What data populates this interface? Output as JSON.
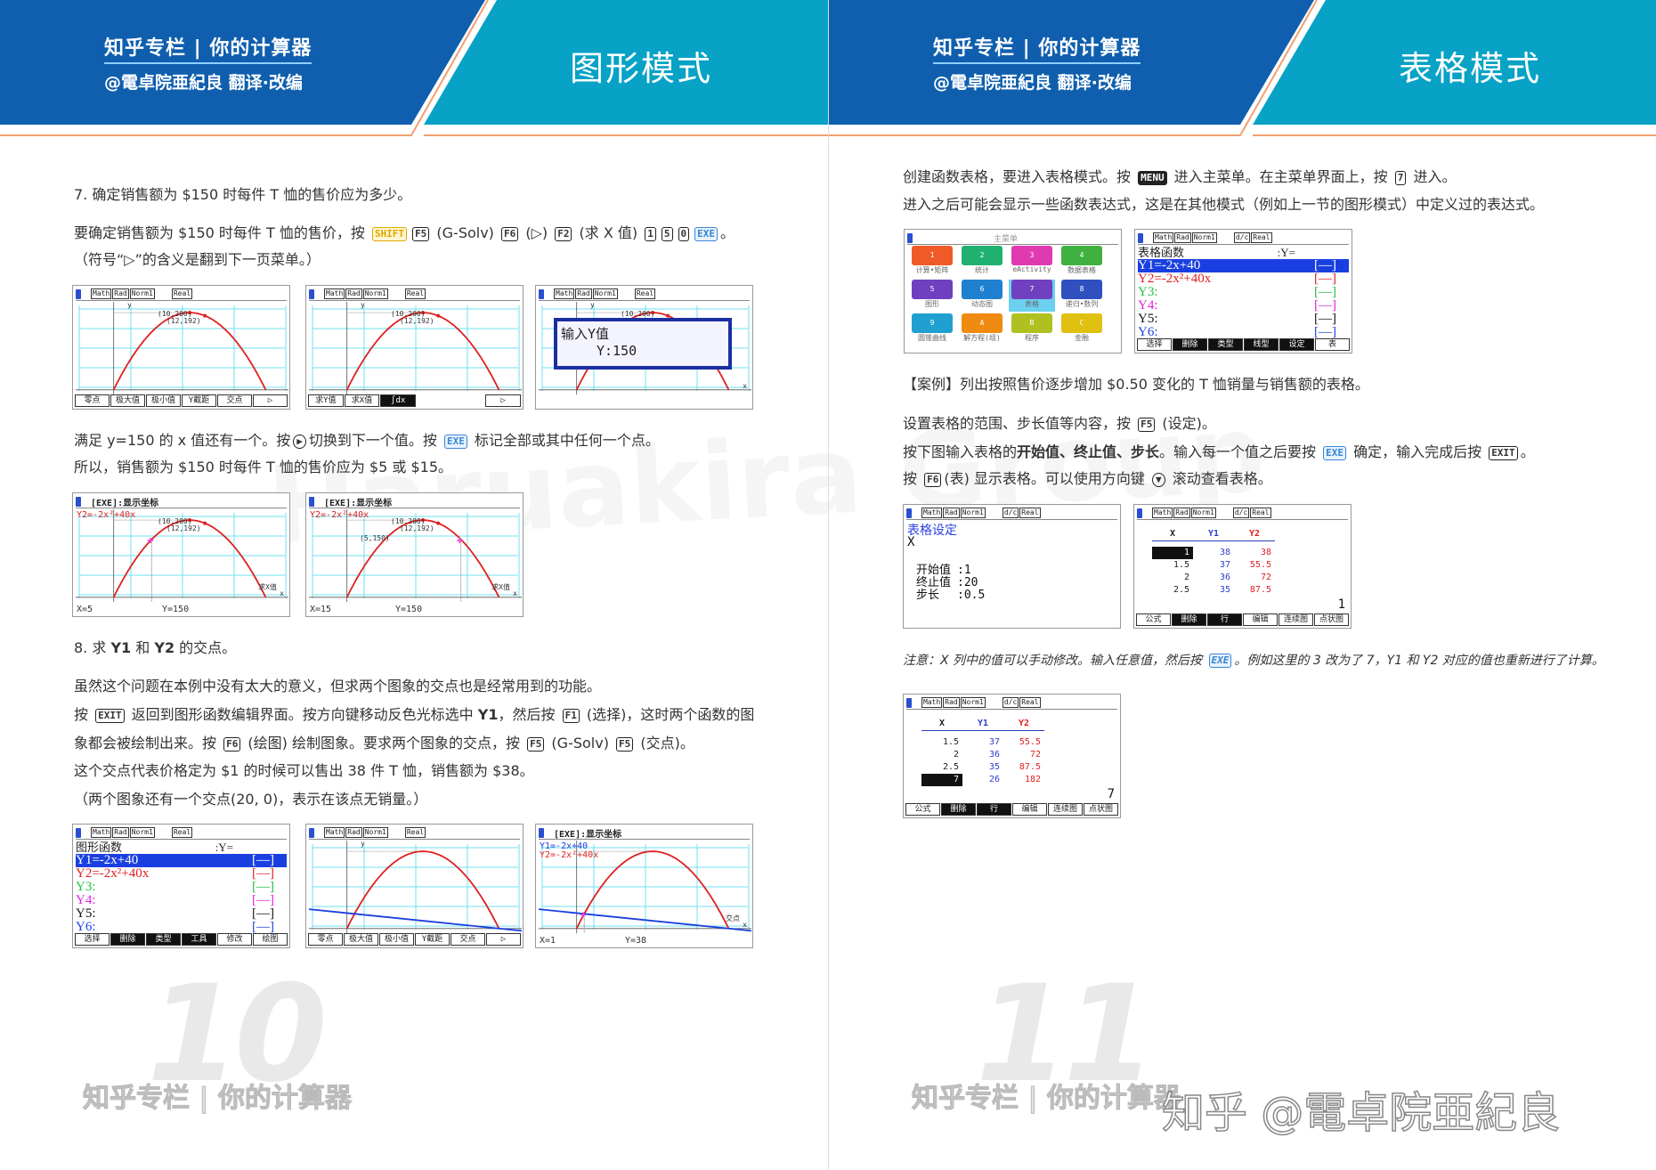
{
  "watermark_bg": "Haruakira Group",
  "site_watermark": "知乎 @電卓院亜紀良",
  "left": {
    "brand": "知乎专栏 | 你的计算器",
    "byline": "@電卓院亜紀良 翻译·改编",
    "mode_title": "图形模式",
    "page_number": "10",
    "footer": "知乎专栏 | 你的计算器",
    "paras": {
      "p1": [
        {
          "t": "7. 确定销售额为 $150 时每件 T 恤的售价应为多少。"
        }
      ],
      "p2": [
        {
          "t": "要确定销售额为 $150 时每件 T 恤的售价，按 "
        },
        {
          "k": "SHIFT",
          "s": "shift"
        },
        {
          "k": "F5"
        },
        {
          "t": " (G-Solv) "
        },
        {
          "k": "F6"
        },
        {
          "t": " (▷) "
        },
        {
          "k": "F2"
        },
        {
          "t": " (求 X 值) "
        },
        {
          "k": "1"
        },
        {
          "k": "5"
        },
        {
          "k": "0"
        },
        {
          "k": "EXE",
          "s": "exe"
        },
        {
          "t": "。"
        }
      ],
      "p3": [
        {
          "t": "（符号“▷”的含义是翻到下一页菜单。）"
        }
      ],
      "p4": [
        {
          "t": "满足 y=150 的 x 值还有一个。按"
        },
        {
          "k": "▶",
          "s": "circ"
        },
        {
          "t": "切换到下一个值。按 "
        },
        {
          "k": "EXE",
          "s": "exe"
        },
        {
          "t": " 标记全部或其中任何一个点。"
        }
      ],
      "p5": [
        {
          "t": "所以，销售额为 $150 时每件 T 恤的售价应为 $5 或 $15。"
        }
      ],
      "p6": [
        {
          "t": "8. 求 "
        },
        {
          "b": "Y1"
        },
        {
          "t": " 和 "
        },
        {
          "b": "Y2"
        },
        {
          "t": " 的交点。"
        }
      ],
      "p7": [
        {
          "t": "虽然这个问题在本例中没有太大的意义，但求两个图象的交点也是经常用到的功能。"
        }
      ],
      "p8": [
        {
          "t": "按 "
        },
        {
          "k": "EXIT"
        },
        {
          "t": " 返回到图形函数编辑界面。按方向键移动反色光标选中 "
        },
        {
          "b": "Y1"
        },
        {
          "t": "，然后按 "
        },
        {
          "k": "F1"
        },
        {
          "t": " (选择)，这时两个函数的图"
        }
      ],
      "p9": [
        {
          "t": "象都会被绘制出来。按 "
        },
        {
          "k": "F6"
        },
        {
          "t": " (绘图) 绘制图象。要求两个图象的交点，按 "
        },
        {
          "k": "F5"
        },
        {
          "t": " (G-Solv) "
        },
        {
          "k": "F5"
        },
        {
          "t": " (交点)。"
        }
      ],
      "p10": [
        {
          "t": "这个交点代表价格定为 $1 的时候可以售出 38 件 T 恤，销售额为 $38。"
        }
      ],
      "p11": [
        {
          "t": "（两个图象还有一个交点(20, 0)，表示在该点无销量。）"
        }
      ]
    },
    "screens": {
      "s1": {
        "status": [
          "Math",
          "Rad",
          "Norm1",
          "Real"
        ],
        "axis_y": "y",
        "points": [
          "(10,200)",
          "(12,192)"
        ],
        "menu": [
          "零点",
          "极大值",
          "极小值",
          "Y截距",
          "交点",
          "▷"
        ]
      },
      "s2": {
        "status": [
          "Math",
          "Rad",
          "Norm1",
          "Real"
        ],
        "axis_y": "y",
        "points": [
          "(10,200)",
          "(12,192)"
        ],
        "menu": [
          "求Y值",
          "求X值",
          "∫dx",
          "",
          "",
          "▷"
        ],
        "menu_active": 2
      },
      "s3": {
        "status": [
          "Math",
          "Rad",
          "Norm1",
          "Real"
        ],
        "axis_y": "y",
        "axis_x": "x",
        "points": [
          "(10,200)"
        ],
        "dialog_title": "输入Y值",
        "dialog_value": "Y:150"
      },
      "s4": {
        "header": "[EXE]:显示坐标",
        "funcs": [
          {
            "text": "Y2=-2x²+40x",
            "color": "#e02020"
          }
        ],
        "points": [
          "(10,200)",
          "(12,192)"
        ],
        "side": "求X值",
        "axis_x": "x",
        "xval": "X=5",
        "yval": "Y=150",
        "mark_x": 5
      },
      "s5": {
        "header": "[EXE]:显示坐标",
        "funcs": [
          {
            "text": "Y2=-2x²+40x",
            "color": "#e02020"
          }
        ],
        "points": [
          "(10,200)",
          "(12,192)",
          "(5,150)"
        ],
        "side": "求X值",
        "axis_x": "x",
        "xval": "X=15",
        "yval": "Y=150",
        "mark_x": 15
      },
      "s6": {
        "status": [
          "Math",
          "Rad",
          "Norm1",
          "Real"
        ],
        "title": "图形函数",
        "title_right": ":Y=",
        "rows": [
          {
            "name": "Y1",
            "expr": "-2x+40",
            "color": "#1a3fe0",
            "sel": true
          },
          {
            "name": "Y2",
            "expr": "-2x²+40x",
            "color": "#e02020"
          },
          {
            "name": "Y3:",
            "expr": "",
            "color": "#20c040"
          },
          {
            "name": "Y4:",
            "expr": "",
            "color": "#e020e0"
          },
          {
            "name": "Y5:",
            "expr": "",
            "color": "#111"
          },
          {
            "name": "Y6:",
            "expr": "",
            "color": "#1a3fe0"
          }
        ],
        "style": "[—]",
        "menu": [
          "选择",
          "删除",
          "类型",
          "工具",
          "修改",
          "绘图"
        ],
        "menu_active": [
          1,
          2,
          3
        ]
      },
      "s7": {
        "status": [
          "Math",
          "Rad",
          "Norm1",
          "Real"
        ],
        "axis_y": "y",
        "line": true,
        "menu": [
          "零点",
          "极大值",
          "极小值",
          "Y截距",
          "交点",
          "▷"
        ]
      },
      "s8": {
        "header": "[EXE]:显示坐标",
        "funcs": [
          {
            "text": "Y1=-2x+40",
            "color": "#1a3fe0"
          },
          {
            "text": "Y2=-2x²+40x",
            "color": "#e02020"
          }
        ],
        "line": true,
        "side": "交点",
        "axis_x": "x",
        "xval": "X=1",
        "yval": "Y=38",
        "mark_x": 1
      }
    }
  },
  "right": {
    "brand": "知乎专栏 | 你的计算器",
    "byline": "@電卓院亜紀良 翻译·改编",
    "mode_title": "表格模式",
    "page_number": "11",
    "footer": "知乎专栏 | 你的计算器",
    "paras": {
      "p1": [
        {
          "t": "创建函数表格，要进入表格模式。按 "
        },
        {
          "k": "MENU",
          "s": "dark"
        },
        {
          "t": " 进入主菜单。在主菜单界面上，按 "
        },
        {
          "k": "7"
        },
        {
          "t": " 进入。"
        }
      ],
      "p2": [
        {
          "t": "进入之后可能会显示一些函数表达式，这是在其他模式（例如上一节的图形模式）中定义过的表达式。"
        }
      ],
      "p3": [
        {
          "t": "【案例】列出按照售价逐步增加 $0.50 变化的 T 恤销量与销售额的表格。"
        }
      ],
      "p4": [
        {
          "t": "设置表格的范围、步长值等内容，按 "
        },
        {
          "k": "F5"
        },
        {
          "t": " (设定)。"
        }
      ],
      "p5": [
        {
          "t": "按下图输入表格的"
        },
        {
          "b": "开始值、终止值、步长"
        },
        {
          "t": "。输入每一个值之后要按 "
        },
        {
          "k": "EXE",
          "s": "exe"
        },
        {
          "t": " 确定，输入完成后按 "
        },
        {
          "k": "EXIT"
        },
        {
          "t": "。"
        }
      ],
      "p6": [
        {
          "t": "按 "
        },
        {
          "k": "F6"
        },
        {
          "t": "(表) 显示表格。可以使用方向键 "
        },
        {
          "k": "▼",
          "s": "circ"
        },
        {
          "t": " 滚动查看表格。"
        }
      ],
      "p7": [
        {
          "t": "注意：X 列中的值可以手动修改。输入任意值，然后按 "
        },
        {
          "k": "EXE",
          "s": "exe"
        },
        {
          "t": "。例如这里的 3 改为了 7，Y1 和 Y2 对应的值也重新进行了计算。"
        }
      ]
    },
    "screens": {
      "menu": {
        "title": "主菜单",
        "items": [
          {
            "label": "计算•矩阵",
            "num": "1",
            "color": "#f05a28"
          },
          {
            "label": "统计",
            "num": "2",
            "color": "#20b070"
          },
          {
            "label": "eActivity",
            "num": "3",
            "color": "#e03ab0"
          },
          {
            "label": "数据表格",
            "num": "4",
            "color": "#40b040"
          },
          {
            "label": "图形",
            "num": "5",
            "color": "#7040c0"
          },
          {
            "label": "动态图",
            "num": "6",
            "color": "#2080d0"
          },
          {
            "label": "表格",
            "num": "7",
            "color": "#7040c0",
            "sel": true
          },
          {
            "label": "递归•数列",
            "num": "8",
            "color": "#3050c0"
          },
          {
            "label": "圆锥曲线",
            "num": "9",
            "color": "#20a0d0"
          },
          {
            "label": "解方程(组)",
            "num": "A",
            "color": "#f08a10"
          },
          {
            "label": "程序",
            "num": "B",
            "color": "#b0c020"
          },
          {
            "label": "金融",
            "num": "C",
            "color": "#e0c010"
          }
        ]
      },
      "func": {
        "status": [
          "Math",
          "Rad",
          "Norm1",
          "d/c",
          "Real"
        ],
        "title": "表格函数",
        "title_right": ":Y=",
        "rows": [
          {
            "name": "Y1",
            "expr": "-2x+40",
            "color": "#1a3fe0",
            "sel": true
          },
          {
            "name": "Y2",
            "expr": "-2x²+40x",
            "color": "#e02020"
          },
          {
            "name": "Y3:",
            "expr": "",
            "color": "#20c040"
          },
          {
            "name": "Y4:",
            "expr": "",
            "color": "#e020e0"
          },
          {
            "name": "Y5:",
            "expr": "",
            "color": "#111"
          },
          {
            "name": "Y6:",
            "expr": "",
            "color": "#1a3fe0"
          }
        ],
        "style": "[—]",
        "menu": [
          "选择",
          "删除",
          "类型",
          "线型",
          "设定",
          "表"
        ],
        "menu_active": [
          1,
          2,
          3,
          4
        ]
      },
      "setting": {
        "status": [
          "Math",
          "Rad",
          "Norm1",
          "d/c",
          "Real"
        ],
        "title": "表格设定",
        "var": "X",
        "fields": [
          {
            "label": "开始值",
            "value": ":1"
          },
          {
            "label": "终止值",
            "value": ":20"
          },
          {
            "label": "步长",
            "value": ":0.5"
          }
        ]
      },
      "table1": {
        "status": [
          "Math",
          "Rad",
          "Norm1",
          "d/c",
          "Real"
        ],
        "headers": [
          "X",
          "Y1",
          "Y2"
        ],
        "rows": [
          [
            "1",
            "38",
            "38"
          ],
          [
            "1.5",
            "37",
            "55.5"
          ],
          [
            "2",
            "36",
            "72"
          ],
          [
            "2.5",
            "35",
            "87.5"
          ]
        ],
        "sel_row": 0,
        "cell_value": "1",
        "menu": [
          "公式",
          "删除",
          "行",
          "编辑",
          "连续图",
          "点状图"
        ],
        "menu_active": [
          1,
          2
        ]
      },
      "table2": {
        "status": [
          "Math",
          "Rad",
          "Norm1",
          "d/c",
          "Real"
        ],
        "headers": [
          "X",
          "Y1",
          "Y2"
        ],
        "rows": [
          [
            "1.5",
            "37",
            "55.5"
          ],
          [
            "2",
            "36",
            "72"
          ],
          [
            "2.5",
            "35",
            "87.5"
          ],
          [
            "7",
            "26",
            "182"
          ]
        ],
        "sel_row": 3,
        "cell_value": "7",
        "menu": [
          "公式",
          "删除",
          "行",
          "编辑",
          "连续图",
          "点状图"
        ],
        "menu_active": [
          1,
          2
        ]
      }
    }
  }
}
